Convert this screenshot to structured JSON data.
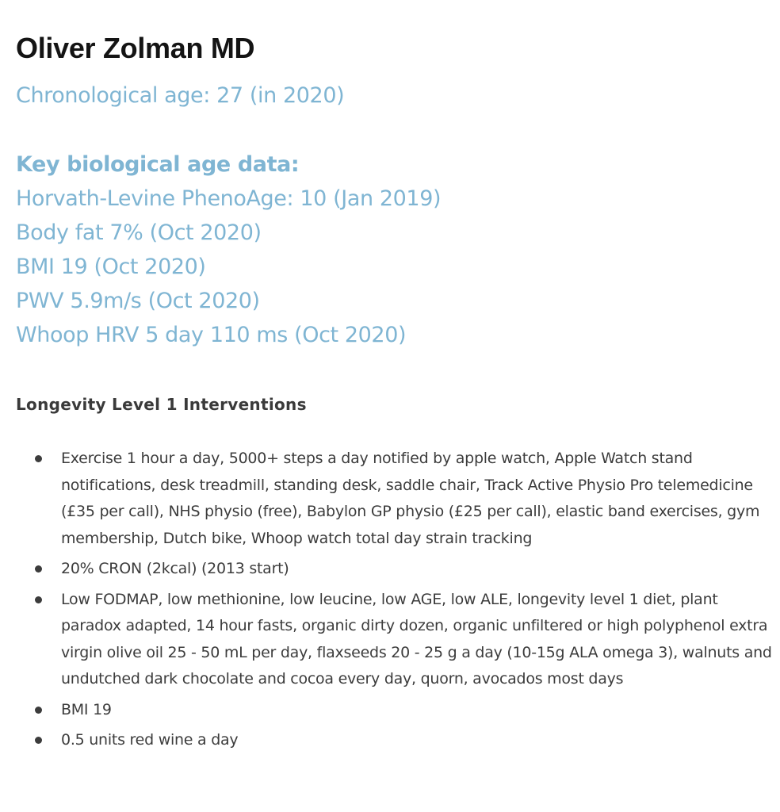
{
  "profile": {
    "name": "Oliver Zolman MD",
    "chronological_age": "Chronological age: 27 (in 2020)"
  },
  "biological_age": {
    "heading": "Key biological age data:",
    "items": [
      "Horvath-Levine PhenoAge: 10 (Jan 2019)",
      "Body fat 7% (Oct 2020)",
      "BMI 19 (Oct 2020)",
      "PWV 5.9m/s (Oct 2020)",
      "Whoop HRV 5 day 110 ms (Oct 2020)"
    ]
  },
  "interventions": {
    "title": "Longevity Level 1 Interventions",
    "items": [
      "Exercise 1 hour a day, 5000+ steps a day notified by apple watch, Apple Watch stand notifications, desk treadmill, standing desk, saddle chair, Track Active Physio Pro telemedicine (£35 per call), NHS physio (free), Babylon GP physio (£25 per call), elastic band exercises, gym membership, Dutch bike, Whoop watch total day strain tracking",
      "20% CRON (2kcal) (2013 start)",
      "Low FODMAP, low methionine, low leucine, low AGE, low ALE, longevity level 1 diet, plant paradox adapted, 14 hour fasts, organic dirty dozen, organic unfiltered or high polyphenol extra virgin olive oil 25 - 50 mL per day, flaxseeds 20 - 25 g a day (10-15g ALA omega 3), walnuts and undutched dark chocolate and cocoa every day, quorn, avocados most days",
      "BMI 19",
      "0.5 units red wine a day"
    ]
  },
  "colors": {
    "accent_blue": "#7fb5d3",
    "heading_black": "#141414",
    "body_text": "#3c3c3c"
  }
}
